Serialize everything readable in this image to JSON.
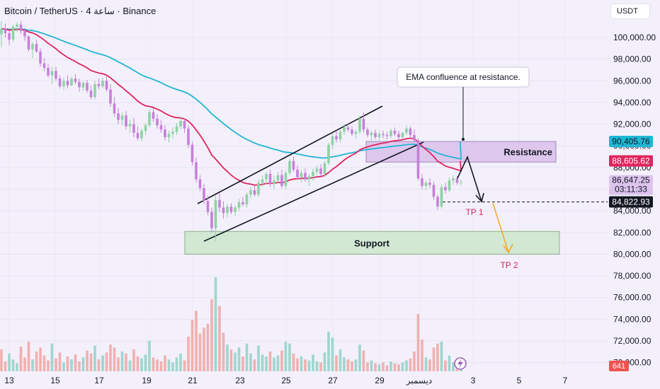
{
  "header": {
    "title": "Bitcoin / TetherUS · 4 ساعة · Binance",
    "currency": "USDT"
  },
  "colors": {
    "background": "#f3f0fb",
    "bullish": "#8fd1a4",
    "bearish": "#c680d8",
    "ema_fast": "#e0245e",
    "ema_slow": "#22b5d4",
    "resistance_fill": "#dcc3ec",
    "support_fill": "#cfe8cf",
    "vol_up": "#8fd1c4",
    "vol_down": "#f0a5a2",
    "tp_arrow": "#f5a623"
  },
  "chart_data": {
    "type": "candlestick",
    "y_axis": {
      "ticks": [
        "100,000.00",
        "98,000.00",
        "96,000.00",
        "94,000.00",
        "92,000.00",
        "90,000.00",
        "88,000.00",
        "86,000.00",
        "84,000.00",
        "82,000.00",
        "80,000.00",
        "78,000.00",
        "76,000.00",
        "74,000.00",
        "72,000.00",
        "70,000.00"
      ],
      "range": [
        69500,
        101500
      ]
    },
    "x_axis": {
      "ticks": [
        "13",
        "15",
        "17",
        "19",
        "21",
        "23",
        "25",
        "27",
        "29",
        "ديسمبر",
        "3",
        "5",
        "7"
      ]
    },
    "price_labels": [
      {
        "name": "ema-slow-value",
        "text": "90,405.76",
        "value": 90405.76,
        "color": "#22b5d4"
      },
      {
        "name": "ema-fast-value",
        "text": "88,605.62",
        "value": 88605.62,
        "color": "#e0245e"
      },
      {
        "name": "last-price",
        "text": "86,647.25",
        "value": 86647.25,
        "color": "#c680d8"
      },
      {
        "name": "countdown",
        "text": "03:11:33",
        "value": 86647.25,
        "color": "#c680d8"
      },
      {
        "name": "tp1-level",
        "text": "84,822.93",
        "value": 84822.93,
        "color": "#131722"
      }
    ],
    "volume_badge": "641",
    "zones": {
      "resistance": {
        "label": "Resistance",
        "top": 90400,
        "bottom": 88500
      },
      "support": {
        "label": "Support",
        "top": 82100,
        "bottom": 80000
      }
    },
    "annotations": {
      "callout": "EMA confluence at resistance.",
      "tp1": "TP 1",
      "tp2": "TP 2"
    },
    "candles": [
      [
        100300,
        101500,
        99100,
        100800
      ],
      [
        100800,
        101300,
        100000,
        100400
      ],
      [
        100400,
        100600,
        99300,
        99800
      ],
      [
        99800,
        101200,
        99600,
        101000
      ],
      [
        101000,
        101400,
        100500,
        101200
      ],
      [
        101200,
        101500,
        100300,
        100600
      ],
      [
        100600,
        100900,
        99700,
        100100
      ],
      [
        100100,
        100200,
        98700,
        98900
      ],
      [
        98900,
        99600,
        98100,
        99400
      ],
      [
        99400,
        99800,
        98600,
        98700
      ],
      [
        98700,
        99000,
        97300,
        97600
      ],
      [
        97600,
        98100,
        96900,
        97200
      ],
      [
        97200,
        97600,
        96300,
        96500
      ],
      [
        96500,
        97300,
        95700,
        96900
      ],
      [
        96900,
        97300,
        96000,
        96200
      ],
      [
        96200,
        96500,
        95300,
        95500
      ],
      [
        95500,
        96300,
        95200,
        96000
      ],
      [
        96000,
        96500,
        95300,
        95600
      ],
      [
        95600,
        96400,
        95500,
        96200
      ],
      [
        96200,
        96600,
        95700,
        95900
      ],
      [
        95900,
        96200,
        95000,
        95400
      ],
      [
        95400,
        96000,
        95100,
        95800
      ],
      [
        95800,
        96100,
        94900,
        95100
      ],
      [
        95100,
        95600,
        94300,
        94500
      ],
      [
        94500,
        96000,
        94300,
        95700
      ],
      [
        95700,
        96200,
        95200,
        95500
      ],
      [
        95500,
        96300,
        95300,
        96000
      ],
      [
        96000,
        96400,
        95000,
        95200
      ],
      [
        95200,
        95700,
        93600,
        93900
      ],
      [
        93900,
        94500,
        92700,
        93000
      ],
      [
        93000,
        93500,
        92000,
        92400
      ],
      [
        92400,
        93100,
        91900,
        92800
      ],
      [
        92800,
        93200,
        91500,
        91800
      ],
      [
        91800,
        92400,
        91200,
        92000
      ],
      [
        92000,
        92600,
        90800,
        91200
      ],
      [
        91200,
        91800,
        90500,
        90700
      ],
      [
        90700,
        91600,
        90400,
        91400
      ],
      [
        91400,
        92100,
        91000,
        91900
      ],
      [
        91900,
        93400,
        91700,
        93100
      ],
      [
        93100,
        93500,
        92200,
        92500
      ],
      [
        92500,
        92900,
        91600,
        91900
      ],
      [
        91900,
        92400,
        91200,
        91500
      ],
      [
        91500,
        91900,
        90500,
        90800
      ],
      [
        90800,
        91400,
        90300,
        91100
      ],
      [
        91100,
        91700,
        90700,
        91300
      ],
      [
        91300,
        92100,
        91000,
        91800
      ],
      [
        91800,
        92700,
        91500,
        92300
      ],
      [
        92300,
        92500,
        91200,
        91600
      ],
      [
        91600,
        91900,
        89800,
        90100
      ],
      [
        90100,
        90400,
        88200,
        88500
      ],
      [
        88500,
        88900,
        86600,
        86900
      ],
      [
        86900,
        87300,
        85800,
        86100
      ],
      [
        86100,
        86500,
        84600,
        84900
      ],
      [
        84900,
        85400,
        83600,
        83900
      ],
      [
        83900,
        84300,
        82000,
        82400
      ],
      [
        82400,
        85400,
        81200,
        85000
      ],
      [
        85000,
        85600,
        83900,
        84300
      ],
      [
        84300,
        84900,
        83300,
        83800
      ],
      [
        83800,
        84600,
        83400,
        84400
      ],
      [
        84400,
        84700,
        83700,
        83900
      ],
      [
        83900,
        84500,
        83500,
        84300
      ],
      [
        84300,
        85100,
        84000,
        84800
      ],
      [
        84800,
        85300,
        84400,
        84600
      ],
      [
        84600,
        85700,
        84300,
        85500
      ],
      [
        85500,
        86200,
        85100,
        85900
      ],
      [
        85900,
        86300,
        85300,
        85500
      ],
      [
        85500,
        86900,
        85300,
        86600
      ],
      [
        86600,
        87300,
        86200,
        86900
      ],
      [
        86900,
        87600,
        86500,
        87400
      ],
      [
        87400,
        87800,
        86200,
        86500
      ],
      [
        86500,
        87200,
        86000,
        86800
      ],
      [
        86800,
        87600,
        86500,
        87300
      ],
      [
        87300,
        87800,
        86100,
        86300
      ],
      [
        86300,
        87700,
        86000,
        87500
      ],
      [
        87500,
        88800,
        87300,
        88600
      ],
      [
        88600,
        89000,
        87600,
        87800
      ],
      [
        87800,
        88200,
        86900,
        87100
      ],
      [
        87100,
        87800,
        86600,
        87500
      ],
      [
        87500,
        87900,
        86700,
        86900
      ],
      [
        86900,
        87400,
        86300,
        87200
      ],
      [
        87200,
        87900,
        86800,
        87600
      ],
      [
        87600,
        88200,
        87300,
        87900
      ],
      [
        87900,
        88300,
        87200,
        87400
      ],
      [
        87400,
        88600,
        87100,
        88400
      ],
      [
        88400,
        90300,
        88200,
        90100
      ],
      [
        90100,
        91200,
        89700,
        90900
      ],
      [
        90900,
        91400,
        90300,
        90600
      ],
      [
        90600,
        91500,
        90300,
        91300
      ],
      [
        91300,
        92000,
        91000,
        91700
      ],
      [
        91700,
        92100,
        91300,
        91500
      ],
      [
        91500,
        91800,
        90900,
        91100
      ],
      [
        91100,
        91500,
        90600,
        91300
      ],
      [
        91300,
        92800,
        91100,
        92500
      ],
      [
        92500,
        93100,
        91200,
        91500
      ],
      [
        91500,
        91700,
        90800,
        91000
      ],
      [
        91000,
        91400,
        90500,
        91200
      ],
      [
        91200,
        91500,
        90600,
        90800
      ],
      [
        90800,
        91300,
        90500,
        91100
      ],
      [
        91100,
        91400,
        90700,
        91000
      ],
      [
        91000,
        91300,
        90600,
        90900
      ],
      [
        90900,
        91600,
        90700,
        91400
      ],
      [
        91400,
        91700,
        90900,
        91100
      ],
      [
        91100,
        91400,
        90500,
        90800
      ],
      [
        90800,
        91300,
        90600,
        91200
      ],
      [
        91200,
        91900,
        91000,
        91600
      ],
      [
        91600,
        91800,
        90700,
        91000
      ],
      [
        91000,
        91500,
        90400,
        90500
      ],
      [
        90500,
        90700,
        86800,
        87000
      ],
      [
        87000,
        87400,
        86000,
        86300
      ],
      [
        86300,
        86800,
        85900,
        86600
      ],
      [
        86600,
        87000,
        86100,
        86400
      ],
      [
        86400,
        86700,
        85000,
        85300
      ],
      [
        85300,
        85500,
        84100,
        84400
      ],
      [
        84400,
        86500,
        84200,
        86200
      ],
      [
        86200,
        86600,
        85600,
        85900
      ],
      [
        85900,
        87100,
        85700,
        86800
      ],
      [
        86800,
        87300,
        86400,
        87000
      ],
      [
        87000,
        87200,
        86400,
        86600
      ],
      [
        86600,
        86900,
        86300,
        86650
      ]
    ],
    "volumes": [
      [
        22,
        0
      ],
      [
        10,
        0
      ],
      [
        18,
        1
      ],
      [
        12,
        1
      ],
      [
        8,
        1
      ],
      [
        25,
        0
      ],
      [
        14,
        0
      ],
      [
        30,
        0
      ],
      [
        12,
        1
      ],
      [
        20,
        0
      ],
      [
        24,
        0
      ],
      [
        16,
        0
      ],
      [
        11,
        0
      ],
      [
        28,
        1
      ],
      [
        13,
        0
      ],
      [
        19,
        0
      ],
      [
        9,
        1
      ],
      [
        15,
        0
      ],
      [
        12,
        1
      ],
      [
        17,
        0
      ],
      [
        10,
        0
      ],
      [
        14,
        1
      ],
      [
        21,
        0
      ],
      [
        18,
        0
      ],
      [
        26,
        1
      ],
      [
        12,
        0
      ],
      [
        16,
        1
      ],
      [
        19,
        0
      ],
      [
        27,
        0
      ],
      [
        24,
        0
      ],
      [
        14,
        0
      ],
      [
        20,
        1
      ],
      [
        18,
        0
      ],
      [
        11,
        1
      ],
      [
        22,
        0
      ],
      [
        15,
        0
      ],
      [
        13,
        1
      ],
      [
        17,
        1
      ],
      [
        31,
        1
      ],
      [
        14,
        0
      ],
      [
        12,
        0
      ],
      [
        10,
        0
      ],
      [
        16,
        0
      ],
      [
        12,
        1
      ],
      [
        9,
        1
      ],
      [
        14,
        1
      ],
      [
        18,
        1
      ],
      [
        11,
        0
      ],
      [
        35,
        0
      ],
      [
        52,
        0
      ],
      [
        61,
        0
      ],
      [
        38,
        0
      ],
      [
        44,
        0
      ],
      [
        48,
        0
      ],
      [
        73,
        0
      ],
      [
        95,
        1
      ],
      [
        66,
        0
      ],
      [
        39,
        0
      ],
      [
        27,
        1
      ],
      [
        22,
        0
      ],
      [
        19,
        1
      ],
      [
        24,
        1
      ],
      [
        15,
        0
      ],
      [
        28,
        1
      ],
      [
        18,
        1
      ],
      [
        12,
        0
      ],
      [
        26,
        1
      ],
      [
        17,
        1
      ],
      [
        15,
        1
      ],
      [
        20,
        0
      ],
      [
        14,
        1
      ],
      [
        16,
        1
      ],
      [
        21,
        0
      ],
      [
        30,
        1
      ],
      [
        28,
        1
      ],
      [
        18,
        0
      ],
      [
        13,
        0
      ],
      [
        15,
        1
      ],
      [
        12,
        0
      ],
      [
        11,
        1
      ],
      [
        17,
        1
      ],
      [
        10,
        1
      ],
      [
        9,
        0
      ],
      [
        19,
        1
      ],
      [
        40,
        1
      ],
      [
        34,
        1
      ],
      [
        16,
        0
      ],
      [
        22,
        1
      ],
      [
        14,
        1
      ],
      [
        12,
        0
      ],
      [
        10,
        0
      ],
      [
        12,
        1
      ],
      [
        27,
        1
      ],
      [
        21,
        0
      ],
      [
        9,
        0
      ],
      [
        11,
        1
      ],
      [
        8,
        0
      ],
      [
        7,
        1
      ],
      [
        9,
        0
      ],
      [
        6,
        0
      ],
      [
        10,
        1
      ],
      [
        8,
        0
      ],
      [
        7,
        0
      ],
      [
        9,
        1
      ],
      [
        11,
        1
      ],
      [
        13,
        0
      ],
      [
        20,
        0
      ],
      [
        58,
        0
      ],
      [
        32,
        0
      ],
      [
        14,
        1
      ],
      [
        12,
        0
      ],
      [
        24,
        0
      ],
      [
        28,
        0
      ],
      [
        30,
        1
      ],
      [
        11,
        0
      ],
      [
        16,
        1
      ],
      [
        9,
        1
      ],
      [
        8,
        0
      ],
      [
        6,
        1
      ]
    ]
  }
}
